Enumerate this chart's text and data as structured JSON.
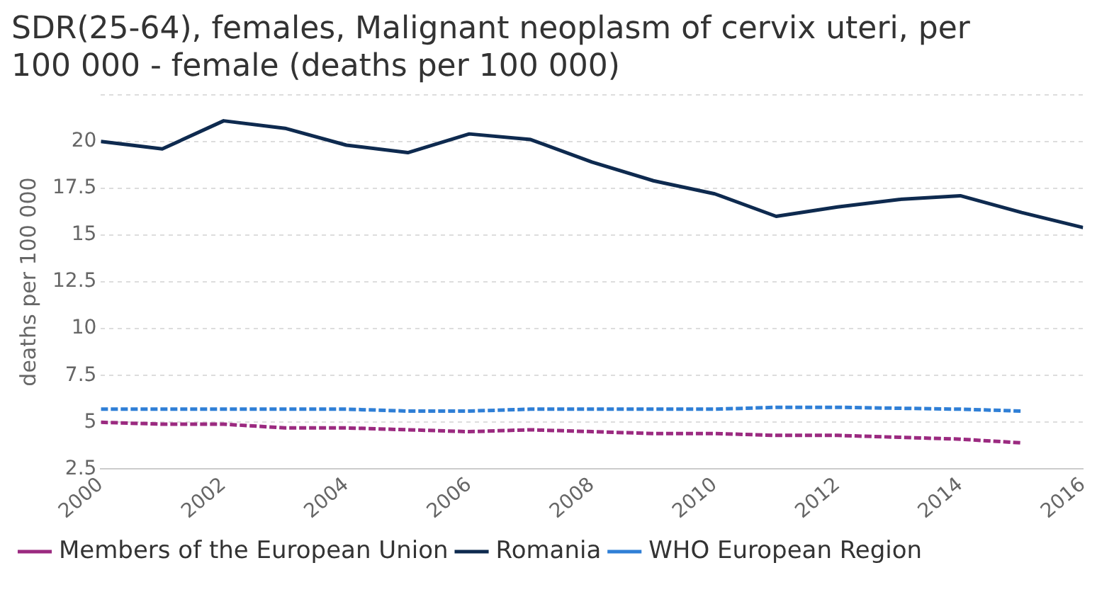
{
  "chart_data": {
    "type": "line",
    "title": "SDR(25-64), females, Malignant neoplasm of cervix uteri, per 100 000 - female (deaths per 100 000)",
    "ylabel": "deaths per 100 000",
    "x": [
      2000,
      2001,
      2002,
      2003,
      2004,
      2005,
      2006,
      2007,
      2008,
      2009,
      2010,
      2011,
      2012,
      2013,
      2014,
      2015,
      2016
    ],
    "xlim": [
      2000,
      2016
    ],
    "xticks": [
      2000,
      2002,
      2004,
      2006,
      2008,
      2010,
      2012,
      2014,
      2016
    ],
    "ylim": [
      2.5,
      22.5
    ],
    "yticks": [
      2.5,
      5,
      7.5,
      10,
      12.5,
      15,
      17.5,
      20,
      {
        "value": 22.5,
        "label": null
      }
    ],
    "grid": "y",
    "legend": "bottom",
    "marker": "none",
    "series": [
      {
        "name": "Members of the European Union",
        "color": "#9b2a80",
        "line_style": "dashed",
        "values": [
          5.0,
          4.9,
          4.9,
          4.7,
          4.7,
          4.6,
          4.5,
          4.6,
          4.5,
          4.4,
          4.4,
          4.3,
          4.3,
          4.2,
          4.1,
          3.9,
          null
        ]
      },
      {
        "name": "Romania",
        "color": "#0e2a4f",
        "line_style": "solid",
        "values": [
          20.0,
          19.6,
          21.1,
          20.7,
          19.8,
          19.4,
          20.4,
          20.1,
          18.9,
          17.9,
          17.2,
          16.0,
          16.5,
          16.9,
          17.1,
          16.2,
          15.4
        ]
      },
      {
        "name": "WHO European Region",
        "color": "#2f7fd6",
        "line_style": "dashed",
        "values": [
          5.7,
          5.7,
          5.7,
          5.7,
          5.7,
          5.6,
          5.6,
          5.7,
          5.7,
          5.7,
          5.7,
          5.8,
          5.8,
          5.75,
          5.7,
          5.6,
          null
        ]
      }
    ]
  }
}
